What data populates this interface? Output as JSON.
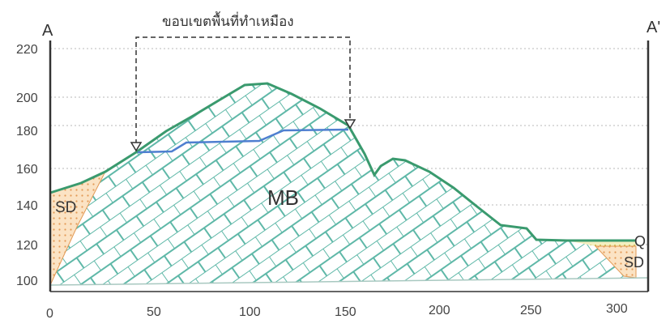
{
  "title": "ขอบเขตพื้นที่ทำเหมือง",
  "section": {
    "start_label": "A",
    "end_label": "A'"
  },
  "y_ticks": [
    "220",
    "200",
    "180",
    "160",
    "140",
    "120",
    "100"
  ],
  "x_ticks": [
    "0",
    "50",
    "100",
    "150",
    "200",
    "250",
    "300"
  ],
  "units": {
    "mb": "MB",
    "sd_left": "SD",
    "q": "Q",
    "sd_right": "SD"
  },
  "colors": {
    "ground_line": "#3a9a6e",
    "hatch": "#5fb8a8",
    "sd_left_fill": "#f2c08a",
    "sd_right_fill": "#e9e2a0",
    "pit_line": "#4f7fd0",
    "axis": "#333333"
  }
}
